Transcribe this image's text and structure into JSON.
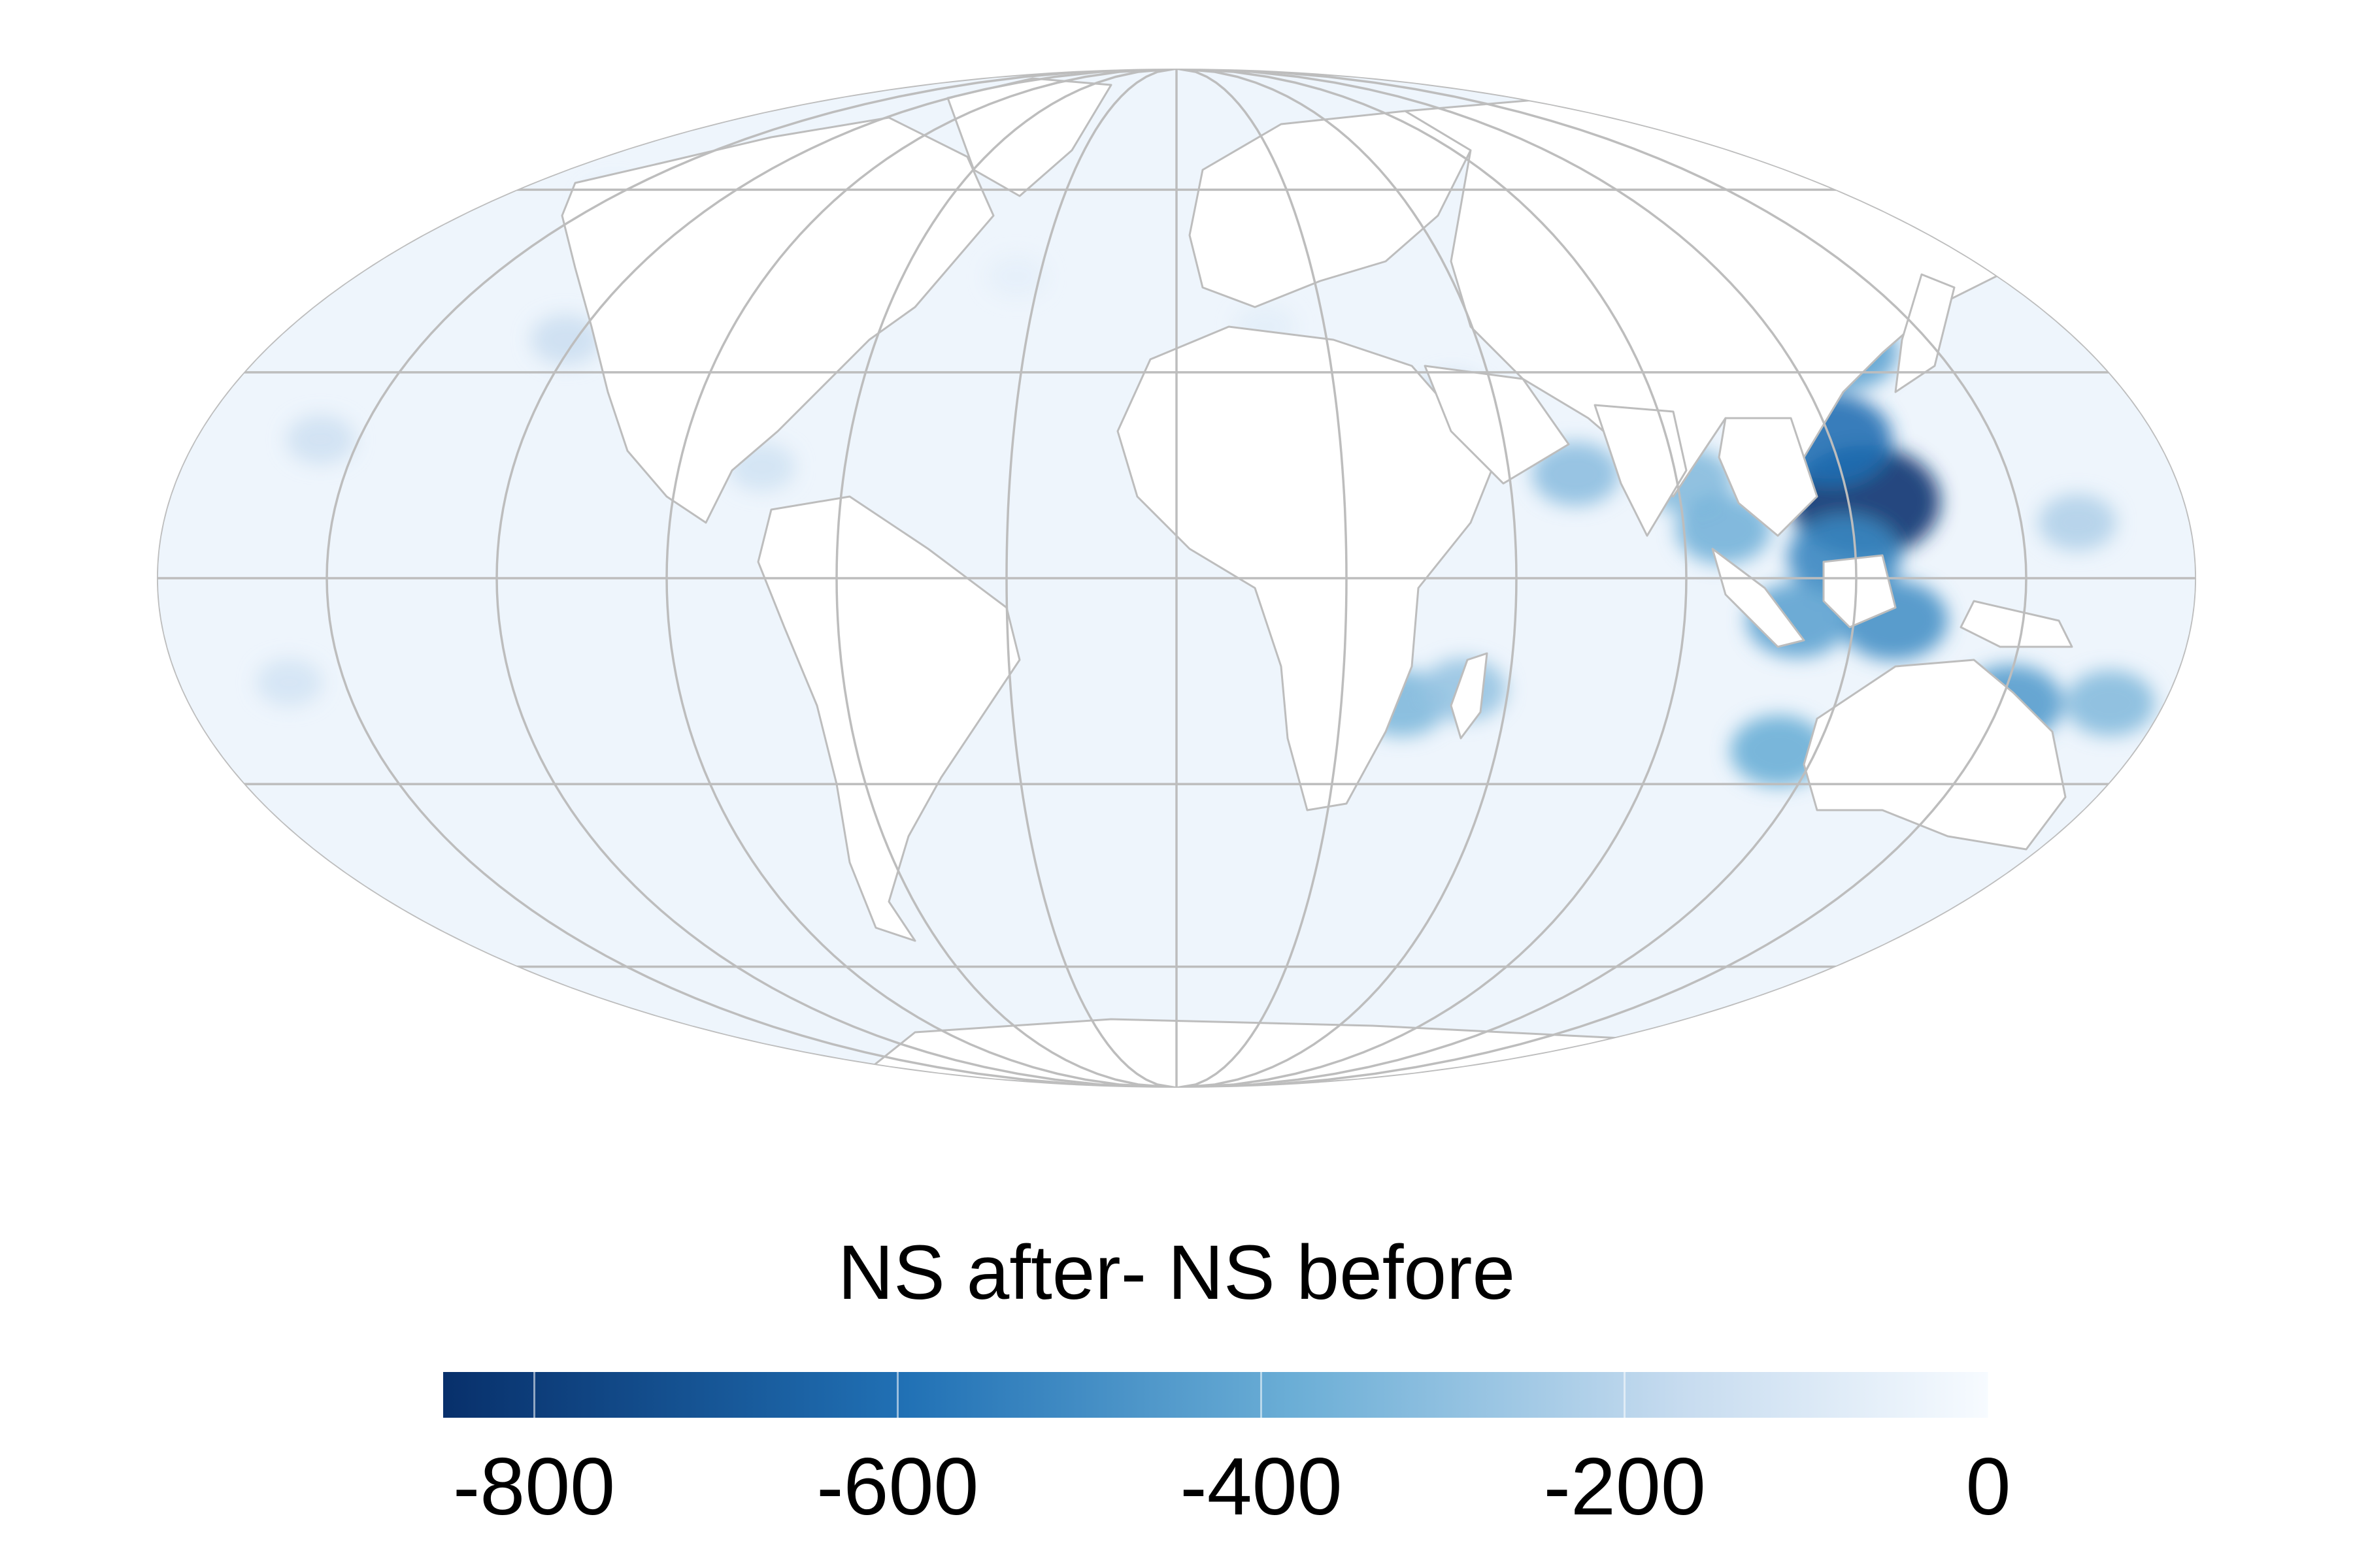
{
  "legend": {
    "title": "NS after- NS before",
    "min": -850,
    "max": 0,
    "ticks": [
      {
        "value": -800,
        "label": "-800"
      },
      {
        "value": -600,
        "label": "-600"
      },
      {
        "value": -400,
        "label": "-400"
      },
      {
        "value": -200,
        "label": "-200"
      },
      {
        "value": 0,
        "label": "0"
      }
    ],
    "colors": {
      "low": "#08306b",
      "mid_low": "#2171b5",
      "mid": "#6baed6",
      "mid_high": "#c6dbef",
      "high": "#f7fbff"
    }
  },
  "map": {
    "projection": "mollweide",
    "ocean_base_color": "#eef5fc",
    "land_color": "#ffffff",
    "border_color": "#bdbdbd",
    "graticule_color": "#bdbdbd",
    "graticule_longitudes": [
      -180,
      -150,
      -120,
      -90,
      -60,
      -30,
      0,
      30,
      60,
      90,
      120,
      150,
      180
    ],
    "graticule_latitudes": [
      -60,
      -30,
      0,
      30,
      60
    ],
    "hotspots": [
      {
        "region": "Philippines",
        "lon": 123,
        "lat": 11,
        "value": -830
      },
      {
        "region": "Japan / Korea coast",
        "lon": 132,
        "lat": 33,
        "value": -420
      },
      {
        "region": "Taiwan / South China Sea",
        "lon": 120,
        "lat": 20,
        "value": -600
      },
      {
        "region": "Borneo / Sulawesi seas",
        "lon": 118,
        "lat": 3,
        "value": -520
      },
      {
        "region": "Indonesia / Banda Sea",
        "lon": 127,
        "lat": -6,
        "value": -480
      },
      {
        "region": "Java Sea",
        "lon": 110,
        "lat": -6,
        "value": -420
      },
      {
        "region": "Bay of Bengal coast",
        "lon": 92,
        "lat": 14,
        "value": -320
      },
      {
        "region": "Andaman Sea",
        "lon": 97,
        "lat": 7,
        "value": -360
      },
      {
        "region": "Western India coast",
        "lon": 72,
        "lat": 15,
        "value": -300
      },
      {
        "region": "Western Australia coast",
        "lon": 113,
        "lat": -25,
        "value": -380
      },
      {
        "region": "Coral Sea / Queensland",
        "lon": 152,
        "lat": -18,
        "value": -440
      },
      {
        "region": "New Caledonia / Fiji",
        "lon": 170,
        "lat": -18,
        "value": -320
      },
      {
        "region": "Micronesia",
        "lon": 160,
        "lat": 8,
        "value": -220
      },
      {
        "region": "Mozambique Channel",
        "lon": 41,
        "lat": -18,
        "value": -330
      },
      {
        "region": "Madagascar east",
        "lon": 52,
        "lat": -16,
        "value": -280
      },
      {
        "region": "Red Sea",
        "lon": 38,
        "lat": 20,
        "value": -180
      },
      {
        "region": "Persian Gulf",
        "lon": 52,
        "lat": 26,
        "value": -150
      },
      {
        "region": "Caribbean",
        "lon": -75,
        "lat": 16,
        "value": -130
      },
      {
        "region": "US West coast",
        "lon": -122,
        "lat": 35,
        "value": -150
      },
      {
        "region": "Gulf of Alaska",
        "lon": -145,
        "lat": 57,
        "value": -120
      },
      {
        "region": "Hawaii",
        "lon": -157,
        "lat": 20,
        "value": -140
      },
      {
        "region": "South Pacific islands",
        "lon": -160,
        "lat": -15,
        "value": -120
      },
      {
        "region": "Bering Sea",
        "lon": 175,
        "lat": 58,
        "value": -110
      },
      {
        "region": "North Atlantic",
        "lon": -35,
        "lat": 45,
        "value": -60
      },
      {
        "region": "Mediterranean",
        "lon": 18,
        "lat": 37,
        "value": -70
      }
    ]
  }
}
